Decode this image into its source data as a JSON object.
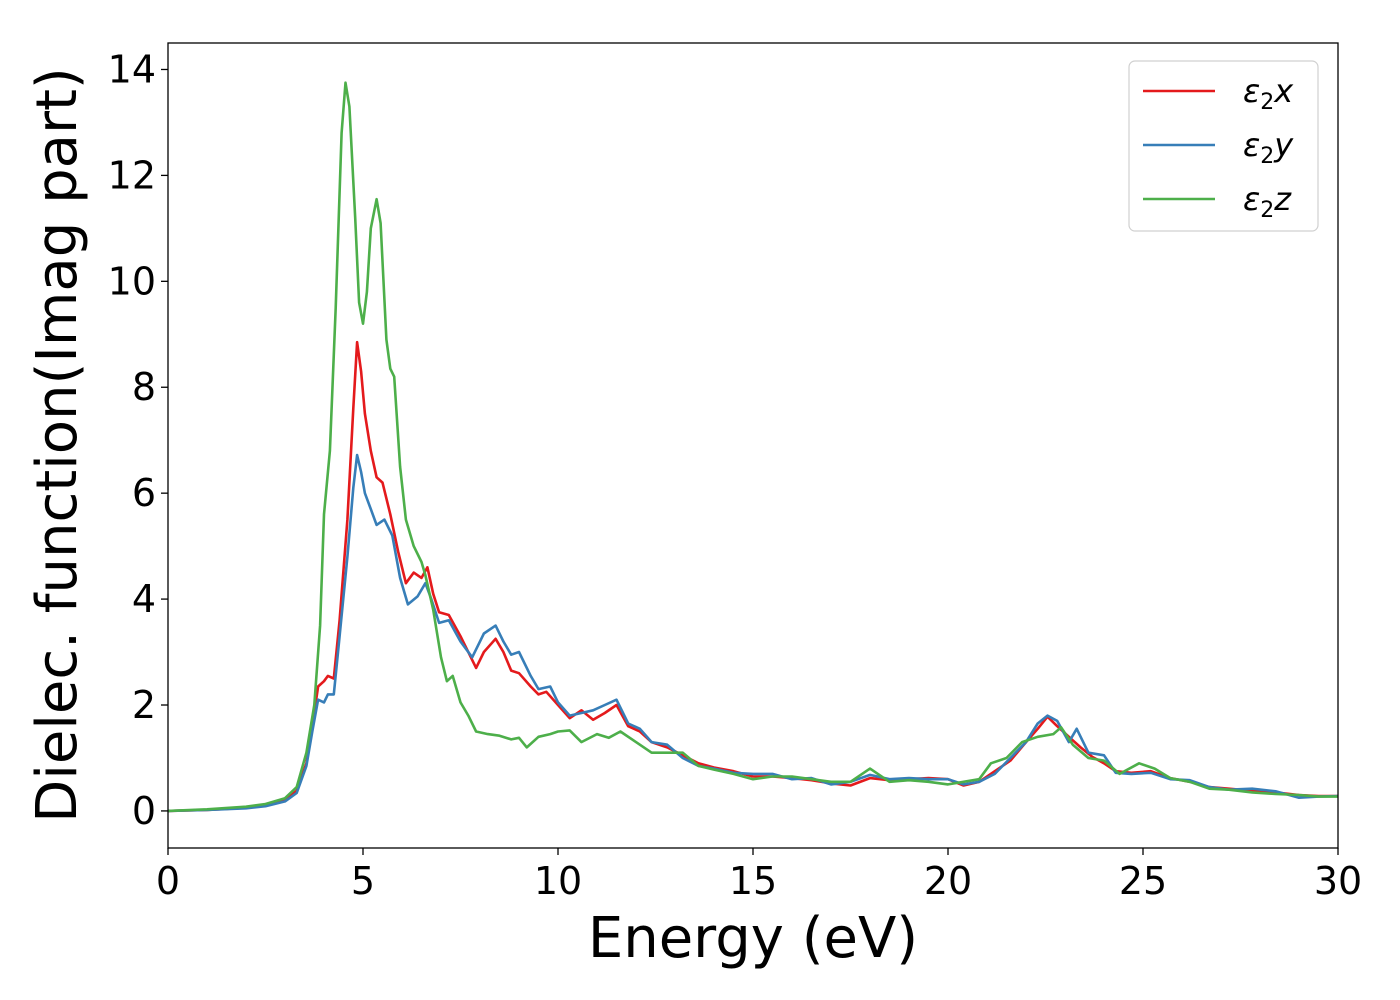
{
  "chart_data": {
    "type": "line",
    "xlabel": "Energy (eV)",
    "ylabel": "Dielec. function(Imag part)",
    "xlim": [
      0,
      30
    ],
    "ylim": [
      -0.7,
      14.5
    ],
    "xticks": [
      0,
      5,
      10,
      15,
      20,
      25,
      30
    ],
    "yticks": [
      0,
      2,
      4,
      6,
      8,
      10,
      12,
      14
    ],
    "grid": false,
    "legend_position": "top-right",
    "series": [
      {
        "name": "ε2x",
        "base": "ε",
        "sub": "2",
        "var": "x",
        "color": "#e41a1c",
        "points": [
          [
            0,
            0
          ],
          [
            1,
            0.02
          ],
          [
            2,
            0.06
          ],
          [
            2.5,
            0.1
          ],
          [
            3,
            0.2
          ],
          [
            3.3,
            0.38
          ],
          [
            3.55,
            0.9
          ],
          [
            3.7,
            1.6
          ],
          [
            3.85,
            2.35
          ],
          [
            4.0,
            2.45
          ],
          [
            4.1,
            2.55
          ],
          [
            4.25,
            2.5
          ],
          [
            4.4,
            3.6
          ],
          [
            4.6,
            5.5
          ],
          [
            4.75,
            7.6
          ],
          [
            4.85,
            8.85
          ],
          [
            4.95,
            8.3
          ],
          [
            5.05,
            7.5
          ],
          [
            5.2,
            6.8
          ],
          [
            5.35,
            6.3
          ],
          [
            5.5,
            6.2
          ],
          [
            5.7,
            5.6
          ],
          [
            5.9,
            4.9
          ],
          [
            6.1,
            4.3
          ],
          [
            6.3,
            4.5
          ],
          [
            6.5,
            4.4
          ],
          [
            6.65,
            4.6
          ],
          [
            6.8,
            4.1
          ],
          [
            6.95,
            3.75
          ],
          [
            7.2,
            3.7
          ],
          [
            7.5,
            3.3
          ],
          [
            7.9,
            2.7
          ],
          [
            8.1,
            3.0
          ],
          [
            8.4,
            3.25
          ],
          [
            8.6,
            3.0
          ],
          [
            8.8,
            2.65
          ],
          [
            9.0,
            2.6
          ],
          [
            9.3,
            2.35
          ],
          [
            9.5,
            2.2
          ],
          [
            9.7,
            2.25
          ],
          [
            10.0,
            2.0
          ],
          [
            10.3,
            1.75
          ],
          [
            10.6,
            1.9
          ],
          [
            10.9,
            1.72
          ],
          [
            11.2,
            1.85
          ],
          [
            11.5,
            2.0
          ],
          [
            11.8,
            1.6
          ],
          [
            12.1,
            1.5
          ],
          [
            12.4,
            1.3
          ],
          [
            12.8,
            1.2
          ],
          [
            13.2,
            1.05
          ],
          [
            13.6,
            0.9
          ],
          [
            14.0,
            0.82
          ],
          [
            14.5,
            0.75
          ],
          [
            15.0,
            0.65
          ],
          [
            15.5,
            0.65
          ],
          [
            16.0,
            0.62
          ],
          [
            16.5,
            0.58
          ],
          [
            17.0,
            0.52
          ],
          [
            17.5,
            0.48
          ],
          [
            18.0,
            0.62
          ],
          [
            18.5,
            0.58
          ],
          [
            19.0,
            0.6
          ],
          [
            19.5,
            0.62
          ],
          [
            20.0,
            0.6
          ],
          [
            20.4,
            0.48
          ],
          [
            20.8,
            0.55
          ],
          [
            21.2,
            0.75
          ],
          [
            21.6,
            0.95
          ],
          [
            22.0,
            1.3
          ],
          [
            22.3,
            1.55
          ],
          [
            22.55,
            1.78
          ],
          [
            22.8,
            1.6
          ],
          [
            23.1,
            1.4
          ],
          [
            23.4,
            1.2
          ],
          [
            23.7,
            1.02
          ],
          [
            24.0,
            0.9
          ],
          [
            24.3,
            0.75
          ],
          [
            24.7,
            0.72
          ],
          [
            25.2,
            0.75
          ],
          [
            25.7,
            0.62
          ],
          [
            26.2,
            0.55
          ],
          [
            26.7,
            0.45
          ],
          [
            27.2,
            0.42
          ],
          [
            27.8,
            0.38
          ],
          [
            28.4,
            0.35
          ],
          [
            29.0,
            0.3
          ],
          [
            29.5,
            0.28
          ],
          [
            30,
            0.28
          ]
        ]
      },
      {
        "name": "ε2y",
        "base": "ε",
        "sub": "2",
        "var": "y",
        "color": "#377eb8",
        "points": [
          [
            0,
            0
          ],
          [
            1,
            0.02
          ],
          [
            2,
            0.05
          ],
          [
            2.5,
            0.09
          ],
          [
            3,
            0.18
          ],
          [
            3.3,
            0.34
          ],
          [
            3.55,
            0.85
          ],
          [
            3.7,
            1.5
          ],
          [
            3.85,
            2.1
          ],
          [
            4.0,
            2.05
          ],
          [
            4.1,
            2.2
          ],
          [
            4.25,
            2.2
          ],
          [
            4.4,
            3.3
          ],
          [
            4.6,
            4.8
          ],
          [
            4.75,
            6.1
          ],
          [
            4.85,
            6.72
          ],
          [
            4.95,
            6.4
          ],
          [
            5.05,
            6.0
          ],
          [
            5.2,
            5.7
          ],
          [
            5.35,
            5.4
          ],
          [
            5.55,
            5.5
          ],
          [
            5.75,
            5.2
          ],
          [
            5.95,
            4.4
          ],
          [
            6.15,
            3.9
          ],
          [
            6.4,
            4.05
          ],
          [
            6.6,
            4.3
          ],
          [
            6.75,
            4.0
          ],
          [
            6.95,
            3.55
          ],
          [
            7.2,
            3.6
          ],
          [
            7.5,
            3.2
          ],
          [
            7.8,
            2.9
          ],
          [
            8.1,
            3.35
          ],
          [
            8.4,
            3.5
          ],
          [
            8.6,
            3.2
          ],
          [
            8.8,
            2.95
          ],
          [
            9.0,
            3.0
          ],
          [
            9.3,
            2.55
          ],
          [
            9.5,
            2.3
          ],
          [
            9.8,
            2.35
          ],
          [
            10.0,
            2.05
          ],
          [
            10.3,
            1.8
          ],
          [
            10.6,
            1.85
          ],
          [
            10.9,
            1.9
          ],
          [
            11.2,
            2.0
          ],
          [
            11.5,
            2.1
          ],
          [
            11.8,
            1.65
          ],
          [
            12.1,
            1.55
          ],
          [
            12.4,
            1.3
          ],
          [
            12.8,
            1.25
          ],
          [
            13.2,
            1.0
          ],
          [
            13.6,
            0.85
          ],
          [
            14.0,
            0.8
          ],
          [
            14.5,
            0.72
          ],
          [
            15.0,
            0.7
          ],
          [
            15.5,
            0.7
          ],
          [
            16.0,
            0.6
          ],
          [
            16.5,
            0.62
          ],
          [
            17.0,
            0.5
          ],
          [
            17.5,
            0.55
          ],
          [
            18.0,
            0.68
          ],
          [
            18.5,
            0.6
          ],
          [
            19.0,
            0.62
          ],
          [
            19.5,
            0.6
          ],
          [
            20.0,
            0.6
          ],
          [
            20.4,
            0.5
          ],
          [
            20.8,
            0.55
          ],
          [
            21.2,
            0.7
          ],
          [
            21.6,
            1.0
          ],
          [
            22.0,
            1.3
          ],
          [
            22.3,
            1.65
          ],
          [
            22.55,
            1.8
          ],
          [
            22.8,
            1.7
          ],
          [
            23.1,
            1.3
          ],
          [
            23.3,
            1.55
          ],
          [
            23.6,
            1.1
          ],
          [
            24.0,
            1.05
          ],
          [
            24.3,
            0.72
          ],
          [
            24.7,
            0.7
          ],
          [
            25.2,
            0.72
          ],
          [
            25.7,
            0.6
          ],
          [
            26.2,
            0.58
          ],
          [
            26.7,
            0.45
          ],
          [
            27.2,
            0.4
          ],
          [
            27.8,
            0.42
          ],
          [
            28.4,
            0.37
          ],
          [
            29.0,
            0.25
          ],
          [
            29.5,
            0.27
          ],
          [
            30,
            0.28
          ]
        ]
      },
      {
        "name": "ε2z",
        "base": "ε",
        "sub": "2",
        "var": "z",
        "color": "#4daf4a",
        "points": [
          [
            0,
            0
          ],
          [
            1,
            0.03
          ],
          [
            2,
            0.08
          ],
          [
            2.5,
            0.13
          ],
          [
            3,
            0.24
          ],
          [
            3.3,
            0.45
          ],
          [
            3.55,
            1.1
          ],
          [
            3.75,
            2.0
          ],
          [
            3.9,
            3.5
          ],
          [
            4.0,
            5.6
          ],
          [
            4.15,
            6.8
          ],
          [
            4.3,
            9.5
          ],
          [
            4.45,
            12.8
          ],
          [
            4.55,
            13.75
          ],
          [
            4.65,
            13.3
          ],
          [
            4.8,
            11.2
          ],
          [
            4.9,
            9.6
          ],
          [
            5.0,
            9.2
          ],
          [
            5.1,
            9.8
          ],
          [
            5.2,
            11.0
          ],
          [
            5.35,
            11.55
          ],
          [
            5.45,
            11.1
          ],
          [
            5.6,
            8.9
          ],
          [
            5.7,
            8.35
          ],
          [
            5.8,
            8.2
          ],
          [
            5.95,
            6.5
          ],
          [
            6.1,
            5.5
          ],
          [
            6.3,
            5.0
          ],
          [
            6.5,
            4.7
          ],
          [
            6.6,
            4.45
          ],
          [
            6.8,
            3.8
          ],
          [
            7.0,
            2.9
          ],
          [
            7.15,
            2.45
          ],
          [
            7.3,
            2.55
          ],
          [
            7.5,
            2.05
          ],
          [
            7.7,
            1.8
          ],
          [
            7.9,
            1.5
          ],
          [
            8.2,
            1.45
          ],
          [
            8.5,
            1.42
          ],
          [
            8.8,
            1.35
          ],
          [
            9.0,
            1.38
          ],
          [
            9.2,
            1.2
          ],
          [
            9.5,
            1.4
          ],
          [
            9.8,
            1.45
          ],
          [
            10.0,
            1.5
          ],
          [
            10.3,
            1.52
          ],
          [
            10.6,
            1.3
          ],
          [
            11.0,
            1.45
          ],
          [
            11.3,
            1.38
          ],
          [
            11.6,
            1.5
          ],
          [
            12.0,
            1.3
          ],
          [
            12.4,
            1.1
          ],
          [
            12.8,
            1.1
          ],
          [
            13.2,
            1.1
          ],
          [
            13.6,
            0.85
          ],
          [
            14.0,
            0.78
          ],
          [
            14.5,
            0.7
          ],
          [
            15.0,
            0.6
          ],
          [
            15.5,
            0.65
          ],
          [
            16.0,
            0.65
          ],
          [
            16.5,
            0.6
          ],
          [
            17.0,
            0.55
          ],
          [
            17.5,
            0.55
          ],
          [
            18.0,
            0.8
          ],
          [
            18.5,
            0.55
          ],
          [
            19.0,
            0.58
          ],
          [
            19.5,
            0.55
          ],
          [
            20.0,
            0.5
          ],
          [
            20.4,
            0.55
          ],
          [
            20.8,
            0.6
          ],
          [
            21.1,
            0.9
          ],
          [
            21.5,
            1.0
          ],
          [
            21.9,
            1.3
          ],
          [
            22.3,
            1.4
          ],
          [
            22.7,
            1.45
          ],
          [
            22.9,
            1.58
          ],
          [
            23.2,
            1.25
          ],
          [
            23.6,
            1.0
          ],
          [
            24.0,
            0.95
          ],
          [
            24.4,
            0.7
          ],
          [
            24.9,
            0.9
          ],
          [
            25.3,
            0.8
          ],
          [
            25.7,
            0.62
          ],
          [
            26.2,
            0.55
          ],
          [
            26.7,
            0.42
          ],
          [
            27.2,
            0.4
          ],
          [
            27.8,
            0.35
          ],
          [
            28.4,
            0.32
          ],
          [
            29.0,
            0.3
          ],
          [
            29.5,
            0.27
          ],
          [
            30,
            0.27
          ]
        ]
      }
    ]
  }
}
